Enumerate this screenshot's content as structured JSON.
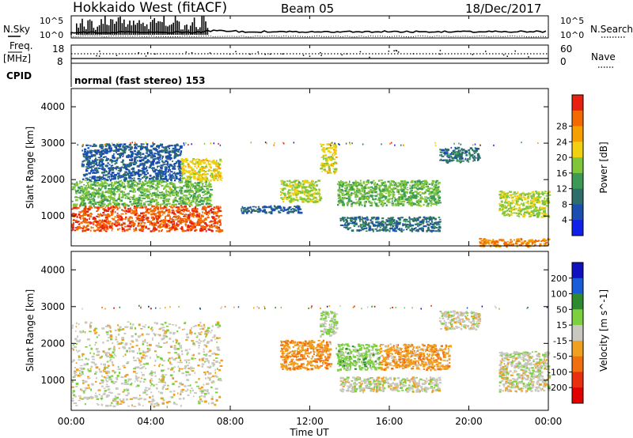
{
  "header": {
    "station": "Hokkaido West (fitACF)",
    "beam": "Beam 05",
    "date": "18/Dec/2017"
  },
  "noise_panel": {
    "left_label": "N.Sky",
    "right_label": "N.Search",
    "left_ticks": [
      "10^5",
      "10^0"
    ],
    "right_ticks": [
      "10^5",
      "10^0"
    ]
  },
  "freq_panel": {
    "left_label": "Freq.",
    "left_unit": "[MHz]",
    "right_label": "Nave",
    "left_ticks": [
      "18",
      "8"
    ],
    "right_ticks": [
      "60",
      "0"
    ]
  },
  "cpid": {
    "label": "CPID",
    "text": "normal (fast stereo) 153"
  },
  "colors": {
    "power_scale": [
      "#1020e8",
      "#1a4fb0",
      "#2e6e6a",
      "#3d9a55",
      "#80c63a",
      "#f0d010",
      "#f5a000",
      "#f26a00",
      "#e82010"
    ],
    "velocity_scale": [
      "#1010c0",
      "#1a5cd8",
      "#2e8a2e",
      "#7cd040",
      "#c8c8c0",
      "#f0a020",
      "#f07010",
      "#e83010",
      "#e00000"
    ]
  },
  "chart_data": [
    {
      "type": "heatmap",
      "title": "",
      "xlabel": "",
      "ylabel": "Slant Range [km]",
      "xlim": [
        "00:00",
        "24:00"
      ],
      "ylim": [
        180,
        4500
      ],
      "y_ticks": [
        "1000",
        "2000",
        "3000",
        "4000"
      ],
      "colorbar": {
        "label": "Power [dB]",
        "ticks": [
          "4",
          "8",
          "12",
          "16",
          "20",
          "24",
          "28"
        ],
        "range": [
          0,
          30
        ]
      },
      "regions": [
        {
          "t_start": 0.0,
          "t_end": 7.5,
          "range_start": 600,
          "range_end": 1300,
          "value": 26
        },
        {
          "t_start": 0.0,
          "t_end": 7.0,
          "range_start": 1300,
          "range_end": 2000,
          "value": 14
        },
        {
          "t_start": 0.5,
          "t_end": 5.5,
          "range_start": 2000,
          "range_end": 3000,
          "value": 6
        },
        {
          "t_start": 5.5,
          "t_end": 7.5,
          "range_start": 2000,
          "range_end": 2600,
          "value": 18
        },
        {
          "t_start": 8.5,
          "t_end": 11.5,
          "range_start": 1100,
          "range_end": 1300,
          "value": 6
        },
        {
          "t_start": 10.5,
          "t_end": 12.5,
          "range_start": 1400,
          "range_end": 2000,
          "value": 16
        },
        {
          "t_start": 12.5,
          "t_end": 13.3,
          "range_start": 2200,
          "range_end": 3000,
          "value": 18
        },
        {
          "t_start": 13.3,
          "t_end": 18.5,
          "range_start": 1300,
          "range_end": 2000,
          "value": 14
        },
        {
          "t_start": 13.5,
          "t_end": 18.5,
          "range_start": 600,
          "range_end": 1000,
          "value": 8
        },
        {
          "t_start": 18.5,
          "t_end": 20.5,
          "range_start": 2500,
          "range_end": 2900,
          "value": 8
        },
        {
          "t_start": 21.5,
          "t_end": 24.0,
          "range_start": 1000,
          "range_end": 1700,
          "value": 16
        },
        {
          "t_start": 20.5,
          "t_end": 24.0,
          "range_start": 180,
          "range_end": 400,
          "value": 24
        }
      ]
    },
    {
      "type": "heatmap",
      "title": "",
      "xlabel": "Time UT",
      "ylabel": "Slant Range [km]",
      "xlim": [
        "00:00",
        "24:00"
      ],
      "ylim": [
        180,
        4500
      ],
      "x_ticks": [
        "00:00",
        "04:00",
        "08:00",
        "12:00",
        "16:00",
        "20:00",
        "00:00"
      ],
      "y_ticks": [
        "1000",
        "2000",
        "3000",
        "4000"
      ],
      "colorbar": {
        "label": "Velocity [m s^-1]",
        "ticks": [
          "200",
          "100",
          "50",
          "15",
          "-15",
          "-50",
          "-100",
          "-200"
        ],
        "range": [
          -250,
          250
        ]
      },
      "regions": [
        {
          "t_start": 0.0,
          "t_end": 7.5,
          "range_start": 300,
          "range_end": 2600,
          "value": 0
        },
        {
          "t_start": 10.5,
          "t_end": 13.0,
          "range_start": 1300,
          "range_end": 2100,
          "value": -70
        },
        {
          "t_start": 12.5,
          "t_end": 13.3,
          "range_start": 2200,
          "range_end": 2900,
          "value": 30
        },
        {
          "t_start": 13.3,
          "t_end": 15.5,
          "range_start": 1300,
          "range_end": 2000,
          "value": 50
        },
        {
          "t_start": 15.5,
          "t_end": 19.0,
          "range_start": 1300,
          "range_end": 2000,
          "value": -60
        },
        {
          "t_start": 13.5,
          "t_end": 18.5,
          "range_start": 700,
          "range_end": 1100,
          "value": 0
        },
        {
          "t_start": 18.5,
          "t_end": 20.5,
          "range_start": 2400,
          "range_end": 2900,
          "value": 0
        },
        {
          "t_start": 21.5,
          "t_end": 24.0,
          "range_start": 700,
          "range_end": 1800,
          "value": 0
        }
      ]
    }
  ]
}
